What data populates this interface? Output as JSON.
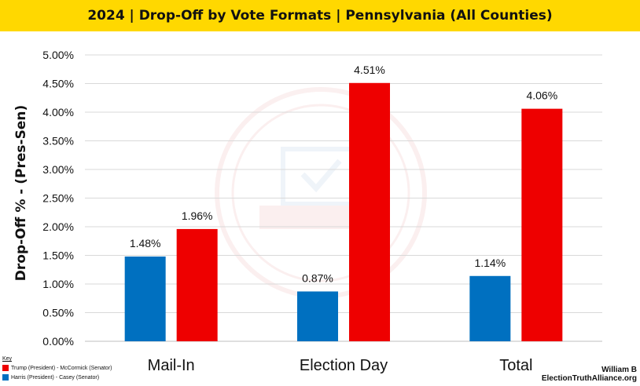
{
  "title": "2024 | Drop-Off by Vote Formats | Pennsylvania (All Counties)",
  "key": {
    "title": "Key",
    "items": [
      {
        "label": "Trump (President) - McCormick (Senator)",
        "color": "#ee0000"
      },
      {
        "label": "Harris (President) - Casey (Senator)",
        "color": "#0070c0"
      }
    ]
  },
  "credit": {
    "author": "William B",
    "site": "ElectionTruthAlliance.org"
  },
  "colors": {
    "title_bar": "#ffd800",
    "red": "#ee0000",
    "blue": "#0070c0"
  },
  "chart_data": {
    "type": "bar",
    "ylabel": "Drop-Off % - (Pres-Sen)",
    "categories": [
      "Mail-In",
      "Election Day",
      "Total"
    ],
    "yticks": [
      "0.00%",
      "0.50%",
      "1.00%",
      "1.50%",
      "2.00%",
      "2.50%",
      "3.00%",
      "3.50%",
      "4.00%",
      "4.50%",
      "5.00%"
    ],
    "ylim": [
      0,
      5
    ],
    "grid": true,
    "series": [
      {
        "name": "Harris (President) - Casey (Senator)",
        "color": "#0070c0",
        "values": [
          1.48,
          0.87,
          1.14
        ],
        "labels": [
          "1.48%",
          "0.87%",
          "1.14%"
        ]
      },
      {
        "name": "Trump (President) - McCormick (Senator)",
        "color": "#ee0000",
        "values": [
          1.96,
          4.51,
          4.06
        ],
        "labels": [
          "1.96%",
          "4.51%",
          "4.06%"
        ]
      }
    ]
  }
}
